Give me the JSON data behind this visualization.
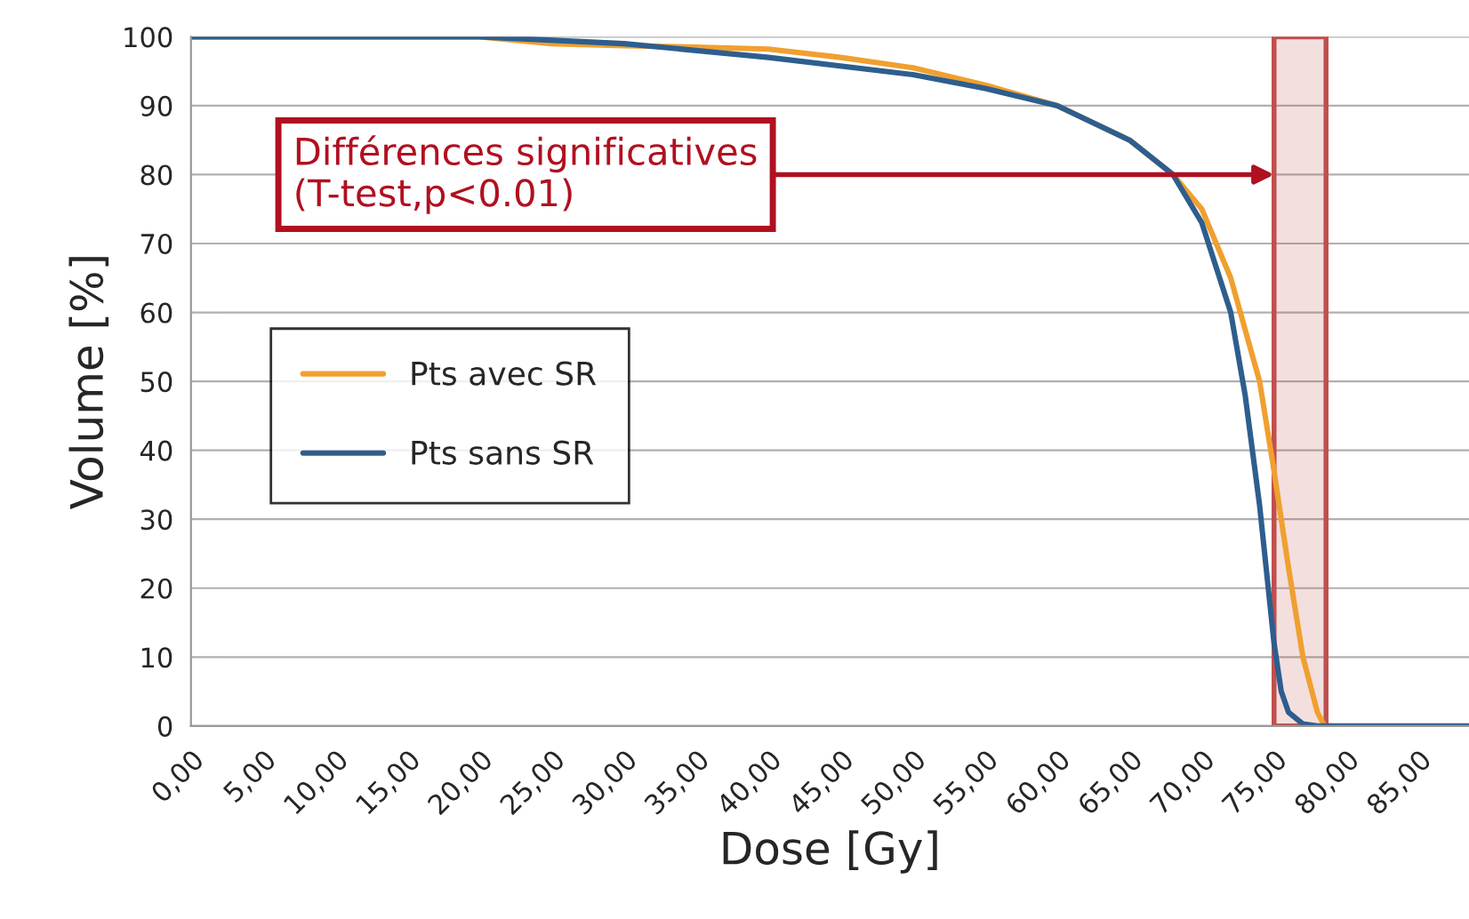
{
  "chart_data": {
    "type": "line",
    "xlabel": "Dose [Gy]",
    "ylabel": "Volume [%]",
    "xlim": [
      0,
      88.5
    ],
    "ylim": [
      0,
      100
    ],
    "xticks": [
      {
        "value": 0,
        "label": "0,00"
      },
      {
        "value": 5,
        "label": "5,00"
      },
      {
        "value": 10,
        "label": "10,00"
      },
      {
        "value": 15,
        "label": "15,00"
      },
      {
        "value": 20,
        "label": "20,00"
      },
      {
        "value": 25,
        "label": "25,00"
      },
      {
        "value": 30,
        "label": "30,00"
      },
      {
        "value": 35,
        "label": "35,00"
      },
      {
        "value": 40,
        "label": "40,00"
      },
      {
        "value": 45,
        "label": "45,00"
      },
      {
        "value": 50,
        "label": "50,00"
      },
      {
        "value": 55,
        "label": "55,00"
      },
      {
        "value": 60,
        "label": "60,00"
      },
      {
        "value": 65,
        "label": "65,00"
      },
      {
        "value": 70,
        "label": "70,00"
      },
      {
        "value": 75,
        "label": "75,00"
      },
      {
        "value": 80,
        "label": "80,00"
      },
      {
        "value": 85,
        "label": "85,00"
      }
    ],
    "yticks": [
      0,
      10,
      20,
      30,
      40,
      50,
      60,
      70,
      80,
      90,
      100
    ],
    "grid": "y",
    "legend": "left",
    "series": [
      {
        "name": "Pts avec SR",
        "color": "#f0a030",
        "x": [
          0,
          20,
          25,
          30,
          35,
          40,
          45,
          50,
          55,
          60,
          65,
          68,
          70,
          72,
          74,
          75,
          76,
          77,
          78,
          78.5,
          79
        ],
        "values": [
          100,
          100,
          99,
          98.7,
          98.5,
          98.2,
          97,
          95.5,
          93,
          90,
          85,
          80,
          75,
          65,
          50,
          37,
          23,
          10,
          2,
          0,
          0
        ]
      },
      {
        "name": "Pts sans SR",
        "color": "#2e5e8e",
        "x": [
          0,
          20,
          30,
          40,
          50,
          55,
          60,
          65,
          68,
          70,
          72,
          73,
          74,
          75,
          75.5,
          76,
          77,
          78,
          88.5
        ],
        "values": [
          100,
          100,
          99,
          97,
          94.5,
          92.5,
          90,
          85,
          80,
          73,
          60,
          48,
          32,
          12,
          5,
          2,
          0.3,
          0,
          0
        ]
      }
    ],
    "bands": [
      {
        "axis": "x",
        "from": 75,
        "to": 78.6,
        "color": "#c0504d"
      }
    ],
    "annotations": [
      {
        "text": "Différences significatives\n(T-test,p<0.01)",
        "x": 75,
        "y": 80
      }
    ]
  }
}
